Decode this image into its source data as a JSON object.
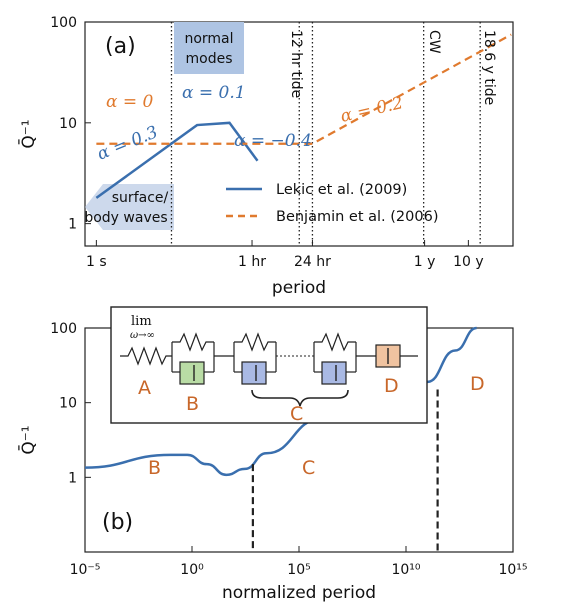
{
  "colors": {
    "lekic": "#3a6fae",
    "benjamin": "#e07a2e",
    "label_orange": "#c8672a",
    "normal_box": "#aec4e3",
    "surface_box": "#cdd9ec",
    "green_fill": "#b9dca5",
    "blue_fill": "#a9b9e4",
    "orange_fill": "#f0c3a0"
  },
  "chart_data": [
    {
      "type": "line",
      "panel_label": "(a)",
      "xlabel": "period",
      "ylabel": "Q̄⁻¹",
      "x_scale": "log",
      "y_scale": "log",
      "x_tick_labels": [
        "1 s",
        "1 hr",
        "24 hr",
        "1 y",
        "10 y"
      ],
      "x_tick_values_s": [
        1,
        3600,
        86400,
        31536000,
        315360000
      ],
      "ylim": [
        1,
        100
      ],
      "y_tick_labels": [
        "1",
        "10",
        "100"
      ],
      "series": [
        {
          "name": "Lekic et al. (2009)",
          "x": [
            1,
            200,
            1100,
            4800
          ],
          "y": [
            1.8,
            9.5,
            10,
            4.2
          ]
        },
        {
          "name": "Benjamin et al. (2006)",
          "x": [
            1,
            86400,
            3000000000
          ],
          "y": [
            6.2,
            6.2,
            75
          ]
        }
      ],
      "vlines": [
        "12 hr tide",
        "CW",
        "18.6 y tide"
      ],
      "annotations": {
        "alpha_03": "α = 0.3",
        "alpha_01": "α = 0.1",
        "alpha_m04": "α = −0.4",
        "alpha_0": "α = 0",
        "alpha_02": "α = 0.2",
        "normal_modes": "normal modes",
        "surface_body": "surface/ body waves",
        "tide12": "12 hr tide",
        "cw": "CW",
        "tide186": "18.6 y tide"
      }
    },
    {
      "type": "line",
      "panel_label": "(b)",
      "xlabel": "normalized period",
      "ylabel": "Q̄⁻¹",
      "x_scale": "log",
      "y_scale": "log",
      "xlim": [
        1e-05,
        1000000000000000
      ],
      "x_tick_labels": [
        "10⁻⁵",
        "10⁰",
        "10⁵",
        "10¹⁰",
        "10¹⁵"
      ],
      "ylim": [
        0.1,
        100
      ],
      "y_tick_labels": [
        "1",
        "10",
        "100"
      ],
      "series": [
        {
          "name": "",
          "x": [
            1e-05,
            0.1,
            0.6,
            5,
            40,
            300,
            3000,
            1000000,
            100000000000,
            2000000000000,
            20000000000000
          ],
          "y": [
            1.35,
            2.0,
            2.0,
            1.5,
            1.08,
            1.3,
            2.1,
            6.0,
            19,
            50,
            100
          ]
        }
      ],
      "regions": [
        "A",
        "B",
        "C",
        "D"
      ],
      "dividers_x": [
        700,
        300000000000
      ],
      "inset": {
        "limit_label": "lim",
        "limit_sub": "ω→∞",
        "labels": [
          "A",
          "B",
          "C",
          "D"
        ]
      }
    }
  ]
}
